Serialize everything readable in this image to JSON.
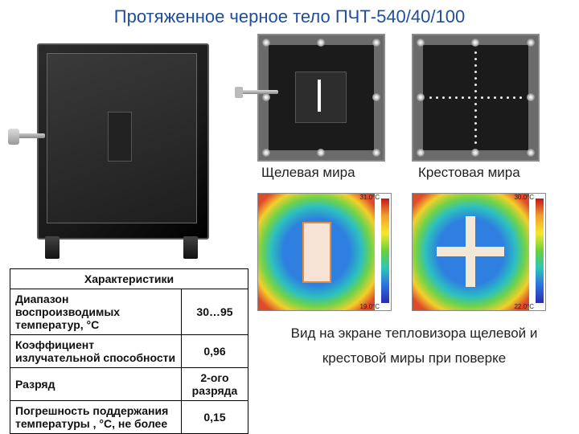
{
  "title": "Протяженное черное тело ПЧТ-540/40/100",
  "captions": {
    "slit": "Щелевая мира",
    "cross": "Крестовая  мира",
    "thermal": "Вид на экране тепловизора щелевой и крестовой миры при поверке"
  },
  "table": {
    "header": "Характеристики",
    "rows": [
      {
        "label": "Диапазон воспроизводимых температур, °С",
        "value": "30…95"
      },
      {
        "label": "Коэффициент излучательной способности",
        "value": "0,96"
      },
      {
        "label": "Разряд",
        "value": "2-ого разряда"
      },
      {
        "label": "Погрешность поддержания температуры , °С, не более",
        "value": "0,15"
      }
    ]
  },
  "thermal_slit": {
    "top_label": "31.0°C",
    "bottom_label": "19.0°C",
    "ticks": [
      "30",
      "28",
      "26",
      "24",
      "22",
      "20"
    ]
  },
  "thermal_cross": {
    "top_label": "30.0°C",
    "bottom_label": "22.0°C",
    "ticks": [
      "30",
      "29",
      "28",
      "27",
      "26",
      "25",
      "24",
      "23"
    ]
  },
  "colors": {
    "title": "#1f4e9c",
    "plate_bg": "#6b6b6b",
    "plate_inner": "#1b1b1b",
    "device_dark": "#1a1a1a"
  }
}
